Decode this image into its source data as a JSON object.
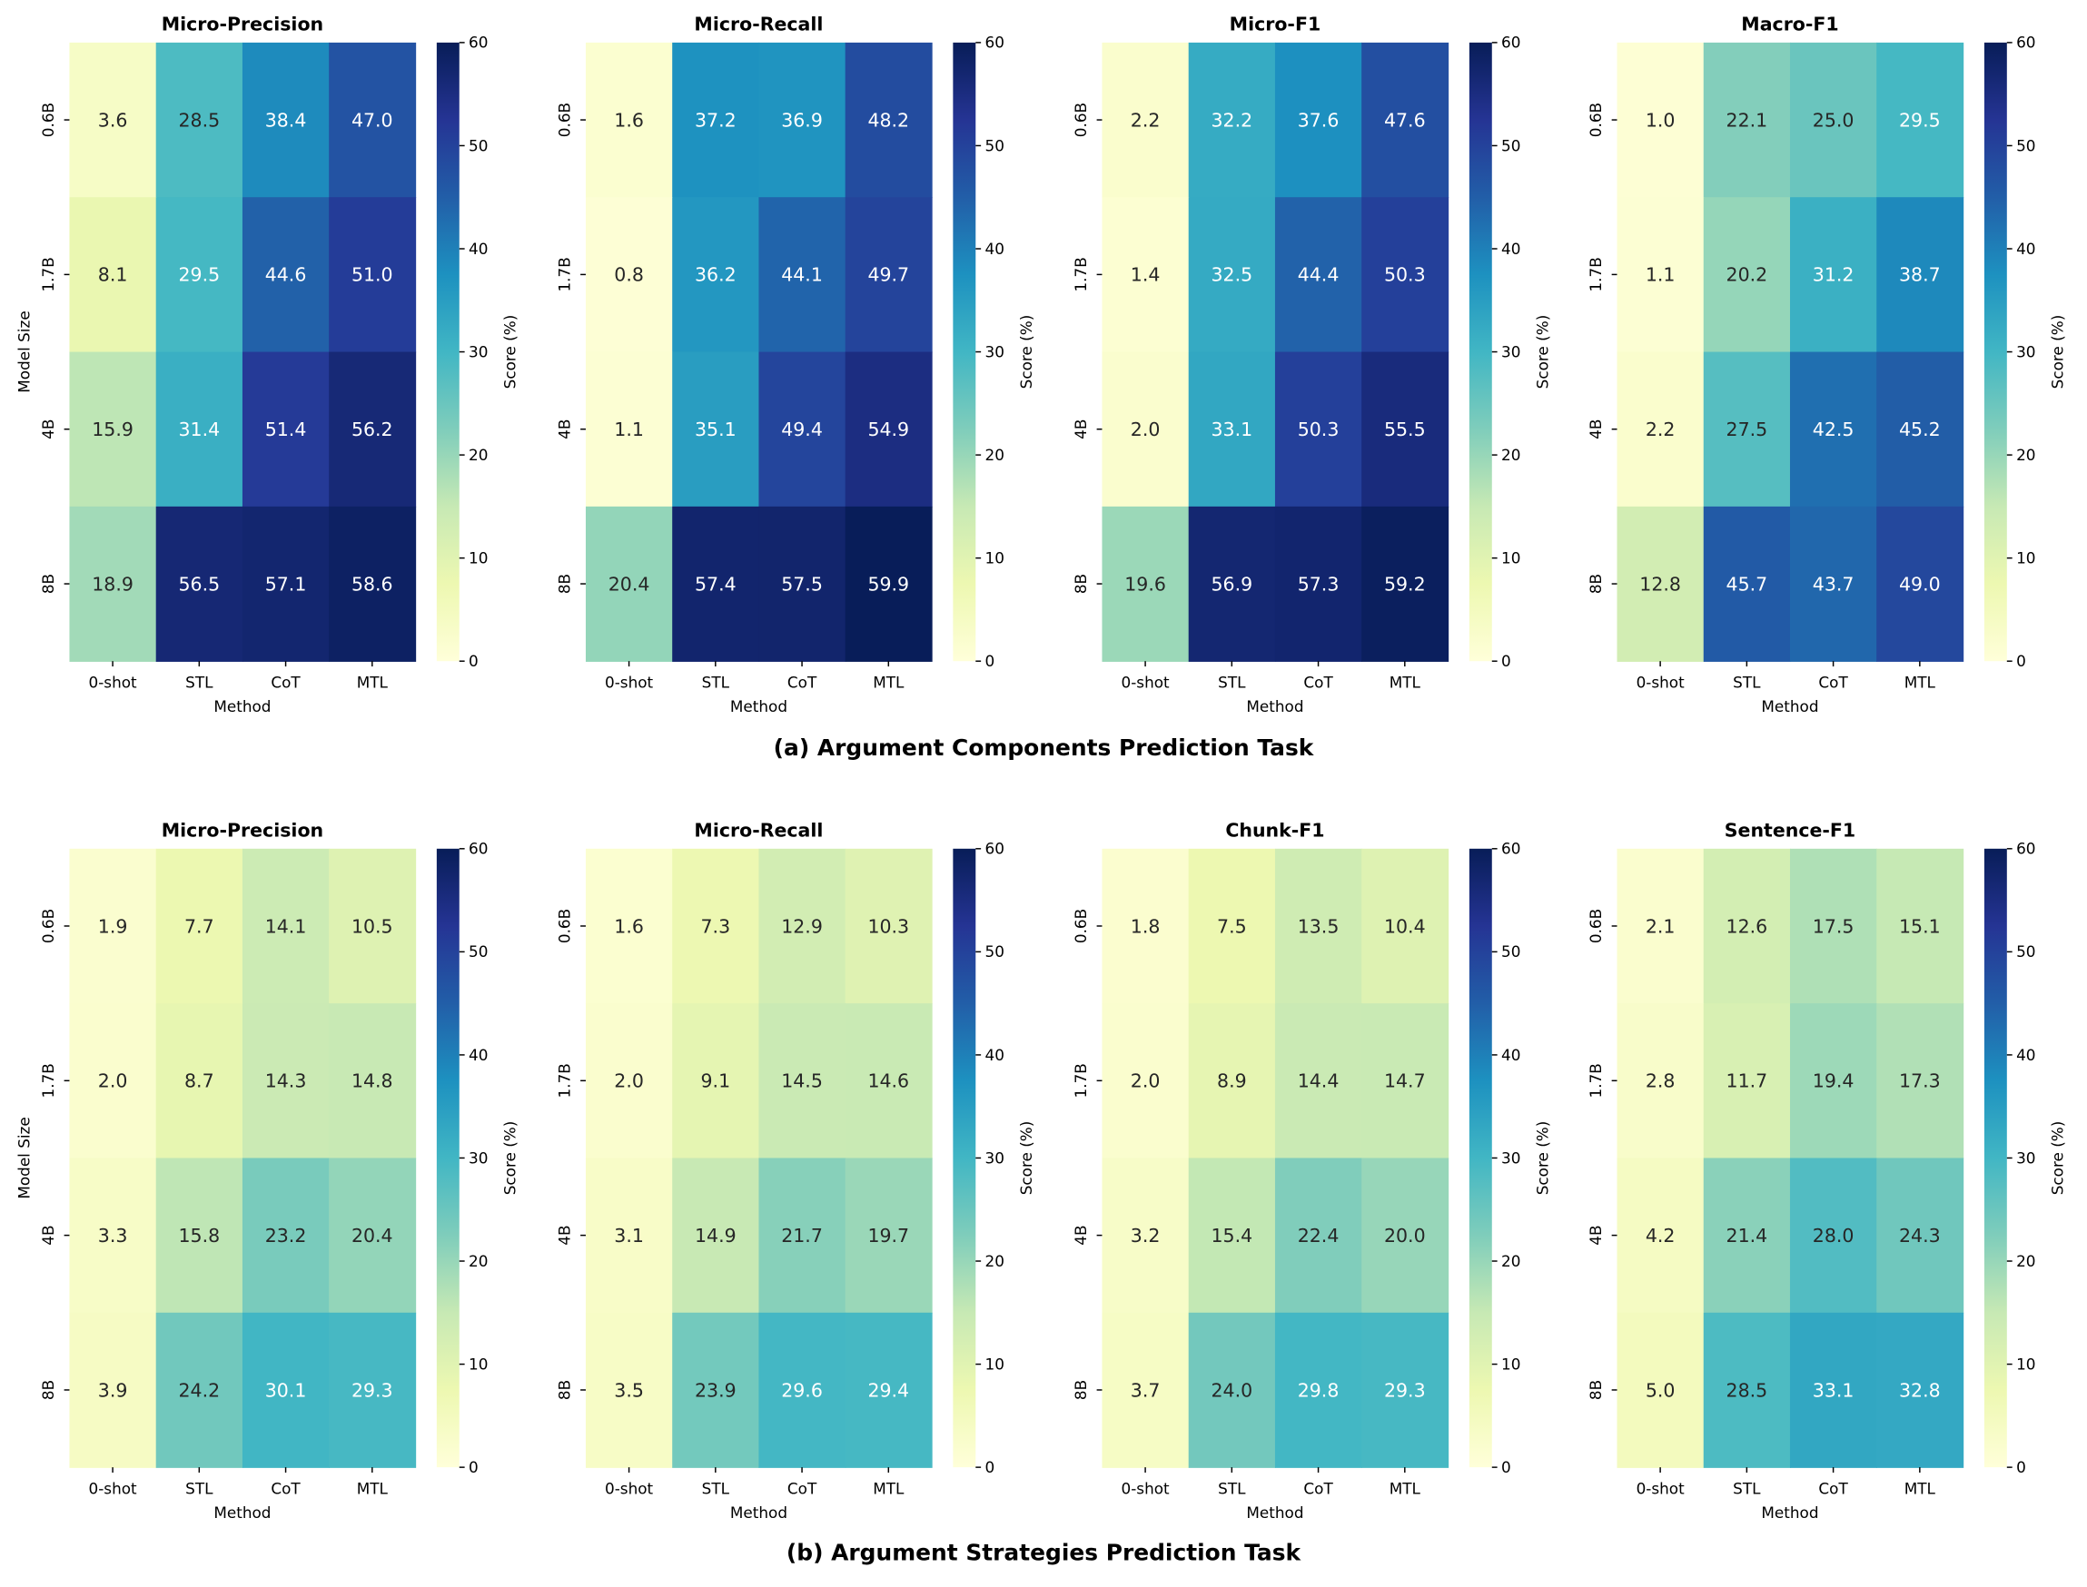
{
  "chart_data": [
    {
      "type": "heatmap",
      "group": "a",
      "title": "Micro-Precision",
      "xlabel": "Method",
      "ylabel": "Model Size",
      "colorbar_label": "Score (%)",
      "x": [
        "0-shot",
        "STL",
        "CoT",
        "MTL"
      ],
      "y": [
        "0.6B",
        "1.7B",
        "4B",
        "8B"
      ],
      "values": [
        [
          3.6,
          28.5,
          38.4,
          47.0
        ],
        [
          8.1,
          29.5,
          44.6,
          51.0
        ],
        [
          15.9,
          31.4,
          51.4,
          56.2
        ],
        [
          18.9,
          56.5,
          57.1,
          58.6
        ]
      ]
    },
    {
      "type": "heatmap",
      "group": "a",
      "title": "Micro-Recall",
      "xlabel": "Method",
      "ylabel": "",
      "colorbar_label": "Score (%)",
      "x": [
        "0-shot",
        "STL",
        "CoT",
        "MTL"
      ],
      "y": [
        "0.6B",
        "1.7B",
        "4B",
        "8B"
      ],
      "values": [
        [
          1.6,
          37.2,
          36.9,
          48.2
        ],
        [
          0.8,
          36.2,
          44.1,
          49.7
        ],
        [
          1.1,
          35.1,
          49.4,
          54.9
        ],
        [
          20.4,
          57.4,
          57.5,
          59.9
        ]
      ]
    },
    {
      "type": "heatmap",
      "group": "a",
      "title": "Micro-F1",
      "xlabel": "Method",
      "ylabel": "",
      "colorbar_label": "Score (%)",
      "x": [
        "0-shot",
        "STL",
        "CoT",
        "MTL"
      ],
      "y": [
        "0.6B",
        "1.7B",
        "4B",
        "8B"
      ],
      "values": [
        [
          2.2,
          32.2,
          37.6,
          47.6
        ],
        [
          1.4,
          32.5,
          44.4,
          50.3
        ],
        [
          2.0,
          33.1,
          50.3,
          55.5
        ],
        [
          19.6,
          56.9,
          57.3,
          59.2
        ]
      ]
    },
    {
      "type": "heatmap",
      "group": "a",
      "title": "Macro-F1",
      "xlabel": "Method",
      "ylabel": "",
      "colorbar_label": "Score (%)",
      "x": [
        "0-shot",
        "STL",
        "CoT",
        "MTL"
      ],
      "y": [
        "0.6B",
        "1.7B",
        "4B",
        "8B"
      ],
      "values": [
        [
          1.0,
          22.1,
          25.0,
          29.5
        ],
        [
          1.1,
          20.2,
          31.2,
          38.7
        ],
        [
          2.2,
          27.5,
          42.5,
          45.2
        ],
        [
          12.8,
          45.7,
          43.7,
          49.0
        ]
      ]
    },
    {
      "type": "heatmap",
      "group": "b",
      "title": "Micro-Precision",
      "xlabel": "Method",
      "ylabel": "Model Size",
      "colorbar_label": "Score (%)",
      "x": [
        "0-shot",
        "STL",
        "CoT",
        "MTL"
      ],
      "y": [
        "0.6B",
        "1.7B",
        "4B",
        "8B"
      ],
      "values": [
        [
          1.9,
          7.7,
          14.1,
          10.5
        ],
        [
          2.0,
          8.7,
          14.3,
          14.8
        ],
        [
          3.3,
          15.8,
          23.2,
          20.4
        ],
        [
          3.9,
          24.2,
          30.1,
          29.3
        ]
      ]
    },
    {
      "type": "heatmap",
      "group": "b",
      "title": "Micro-Recall",
      "xlabel": "Method",
      "ylabel": "",
      "colorbar_label": "Score (%)",
      "x": [
        "0-shot",
        "STL",
        "CoT",
        "MTL"
      ],
      "y": [
        "0.6B",
        "1.7B",
        "4B",
        "8B"
      ],
      "values": [
        [
          1.6,
          7.3,
          12.9,
          10.3
        ],
        [
          2.0,
          9.1,
          14.5,
          14.6
        ],
        [
          3.1,
          14.9,
          21.7,
          19.7
        ],
        [
          3.5,
          23.9,
          29.6,
          29.4
        ]
      ]
    },
    {
      "type": "heatmap",
      "group": "b",
      "title": "Chunk-F1",
      "xlabel": "Method",
      "ylabel": "",
      "colorbar_label": "Score (%)",
      "x": [
        "0-shot",
        "STL",
        "CoT",
        "MTL"
      ],
      "y": [
        "0.6B",
        "1.7B",
        "4B",
        "8B"
      ],
      "values": [
        [
          1.8,
          7.5,
          13.5,
          10.4
        ],
        [
          2.0,
          8.9,
          14.4,
          14.7
        ],
        [
          3.2,
          15.4,
          22.4,
          20.0
        ],
        [
          3.7,
          24.0,
          29.8,
          29.3
        ]
      ]
    },
    {
      "type": "heatmap",
      "group": "b",
      "title": "Sentence-F1",
      "xlabel": "Method",
      "ylabel": "",
      "colorbar_label": "Score (%)",
      "x": [
        "0-shot",
        "STL",
        "CoT",
        "MTL"
      ],
      "y": [
        "0.6B",
        "1.7B",
        "4B",
        "8B"
      ],
      "values": [
        [
          2.1,
          12.6,
          17.5,
          15.1
        ],
        [
          2.8,
          11.7,
          19.4,
          17.3
        ],
        [
          4.2,
          21.4,
          28.0,
          24.3
        ],
        [
          5.0,
          28.5,
          33.1,
          32.8
        ]
      ]
    }
  ],
  "colorbar": {
    "range": [
      0,
      60
    ],
    "ticks": [
      "0",
      "10",
      "20",
      "30",
      "40",
      "50",
      "60"
    ],
    "colormap": [
      "#ffffd9",
      "#edf8b1",
      "#c7e9b4",
      "#7fcdbb",
      "#41b6c4",
      "#1d91c0",
      "#225ea8",
      "#253494",
      "#081d58"
    ]
  },
  "captions": {
    "a": "(a) Argument Components Prediction Task",
    "b": "(b) Argument Strategies Prediction Task"
  }
}
